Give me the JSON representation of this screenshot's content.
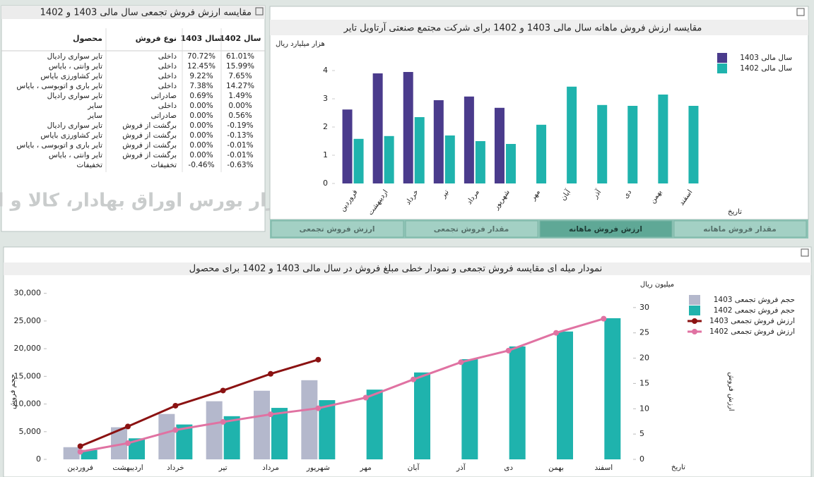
{
  "table_panel": {
    "title": "مقایسه ارزش فروش تجمعی سال مالی 1403 و 1402",
    "columns": [
      "محصول",
      "نوع فروش",
      "سال 1403",
      "سال 1402"
    ],
    "rows": [
      [
        "تایر سواری رادیال",
        "داخلی",
        "70.72%",
        "61.01%"
      ],
      [
        "تایر وانتی ، بایاس",
        "داخلی",
        "12.45%",
        "15.99%"
      ],
      [
        "تایر کشاورزی بایاس",
        "داخلی",
        "9.22%",
        "7.65%"
      ],
      [
        "تایر باری و اتوبوسی ، بایاس",
        "داخلی",
        "7.38%",
        "14.27%"
      ],
      [
        "تایر سواری رادیال",
        "صادراتی",
        "0.69%",
        "1.49%"
      ],
      [
        "سایر",
        "داخلی",
        "0.00%",
        "0.00%"
      ],
      [
        "سایر",
        "صادراتی",
        "0.00%",
        "0.56%"
      ],
      [
        "تایر سواری رادیال",
        "برگشت از فروش",
        "0.00%",
        "-0.19%"
      ],
      [
        "تایر کشاورزی بایاس",
        "برگشت از فروش",
        "0.00%",
        "-0.13%"
      ],
      [
        "تایر باری و اتوبوسی ، بایاس",
        "برگشت از فروش",
        "0.00%",
        "-0.01%"
      ],
      [
        "تایر وانتی ، بایاس",
        "برگشت از فروش",
        "0.00%",
        "-0.01%"
      ],
      [
        "تخفیفات",
        "تخفیفات",
        "-0.46%",
        "-0.63%"
      ]
    ],
    "watermark": "کارگزار بورس اوراق بهادار، کالا و انرژی"
  },
  "tabs": [
    "ارزش فروش تجمعی",
    "مقدار فروش تجمعی",
    "ارزش فروش ماهانه",
    "مقدار فروش ماهانه"
  ],
  "chart_data": [
    {
      "type": "bar",
      "title": "مقایسه ارزش فروش ماهانه سال مالی 1403 و 1402 برای شرکت مجتمع صنعتی آرتاویل تایر",
      "y_label": "هزار میلیارد ریال",
      "x_label": "تاریخ",
      "categories": [
        "فروردین",
        "اردیبهشت",
        "خرداد",
        "تیر",
        "مرداد",
        "شهریور",
        "مهر",
        "آبان",
        "آذر",
        "دی",
        "بهمن",
        "اسفند"
      ],
      "series": [
        {
          "name": "سال مالی  1403",
          "color": "#4a3b8c",
          "values": [
            2.62,
            3.9,
            3.95,
            2.95,
            3.08,
            2.68,
            null,
            null,
            null,
            null,
            null,
            null
          ]
        },
        {
          "name": "سال مالی  1402",
          "color": "#1fb3ad",
          "values": [
            1.58,
            1.68,
            2.35,
            1.7,
            1.5,
            1.4,
            2.08,
            3.43,
            2.78,
            2.75,
            3.15,
            2.75
          ]
        }
      ],
      "ylim": [
        0,
        4.8
      ],
      "yticks": [
        0,
        1,
        2,
        3,
        4
      ],
      "grid": false,
      "legend": "right"
    },
    {
      "type": "combo",
      "title": "نمودار میله ای مقایسه فروش تجمعی و نمودار خطی مبلغ فروش در سال مالی 1403 و 1402 برای محصول",
      "y_label": "حجم فروش",
      "y2_label": "ارزش فروش",
      "y2_unit": "میلیون ریال",
      "x_label": "تاریخ",
      "categories": [
        "فروردین",
        "اردیبهشت",
        "خرداد",
        "تیر",
        "مرداد",
        "شهریور",
        "مهر",
        "آبان",
        "آذر",
        "دی",
        "بهمن",
        "اسفند"
      ],
      "series": [
        {
          "name": "حجم فروش تجمعی  1403",
          "type": "bar",
          "color": "#b4b8cc",
          "values": [
            2200,
            5800,
            8200,
            10500,
            12400,
            14300,
            null,
            null,
            null,
            null,
            null,
            null
          ]
        },
        {
          "name": "حجم فروش تجمعی 1402",
          "type": "bar",
          "color": "#1fb3ad",
          "values": [
            1700,
            3800,
            6300,
            7800,
            9300,
            10700,
            12600,
            15700,
            18100,
            20400,
            23100,
            25500
          ]
        },
        {
          "name": "ارزش فروش تجمعی 1403",
          "type": "line",
          "axis": "y2",
          "color": "#8b1212",
          "values": [
            2.6,
            6.5,
            10.6,
            13.6,
            16.9,
            19.7,
            null,
            null,
            null,
            null,
            null,
            null
          ]
        },
        {
          "name": "ارزش فروش تجمعی 1402",
          "type": "line",
          "axis": "y2",
          "color": "#e072a2",
          "values": [
            1.5,
            3.2,
            5.8,
            7.4,
            8.9,
            10.1,
            12.2,
            15.8,
            19.2,
            21.5,
            25.0,
            27.8
          ]
        }
      ],
      "ylim": [
        0,
        32000
      ],
      "yticks": [
        0,
        {
          "value": 5000,
          "label": "5,000"
        },
        {
          "value": 10000,
          "label": "10,000"
        },
        {
          "value": 15000,
          "label": "15,000"
        },
        {
          "value": 20000,
          "label": "20,000"
        },
        {
          "value": 25000,
          "label": "25,000"
        },
        {
          "value": 30000,
          "label": "30,000"
        }
      ],
      "y2lim": [
        0,
        35
      ],
      "y2ticks": [
        0,
        5,
        10,
        15,
        20,
        25,
        30
      ],
      "grid": false,
      "legend": "right"
    }
  ]
}
